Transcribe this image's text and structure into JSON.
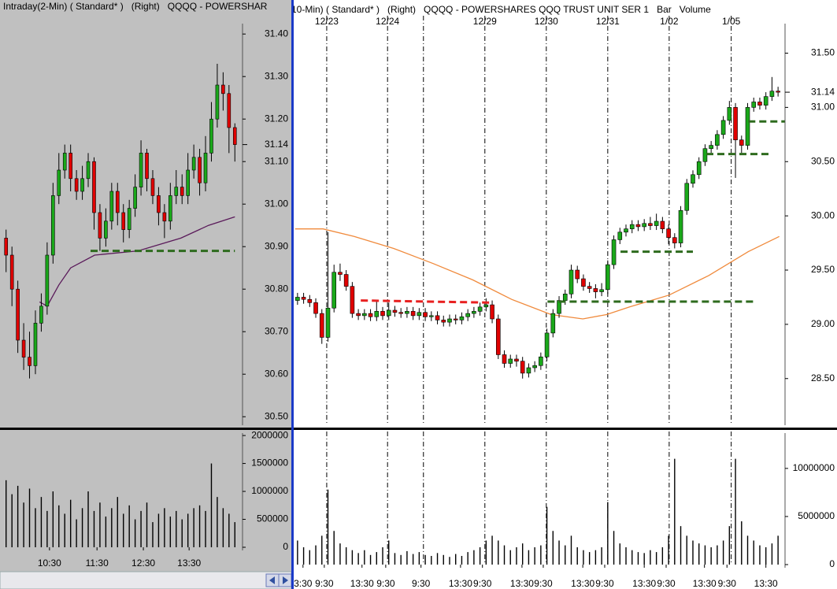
{
  "chart_data": [
    {
      "type": "candlestick",
      "title": "Intraday(2-Min) ( Standard* )   (Right)   QQQQ - POWERSHAR",
      "up_color": "#1aa81a",
      "down_color": "#e00000",
      "ylim": [
        30.48,
        31.48
      ],
      "yticks": [
        {
          "value": 30.5,
          "label": "30.50"
        },
        {
          "value": 30.6,
          "label": "30.60"
        },
        {
          "value": 30.7,
          "label": "30.70"
        },
        {
          "value": 30.8,
          "label": "30.80"
        },
        {
          "value": 30.9,
          "label": "30.90"
        },
        {
          "value": 31.0,
          "label": "31.00"
        },
        {
          "value": 31.1,
          "label": "31.10"
        },
        {
          "value": 31.2,
          "label": "31.20"
        },
        {
          "value": 31.3,
          "label": "31.30"
        },
        {
          "value": 31.4,
          "label": "31.40"
        }
      ],
      "last_price": 31.14,
      "xlim": [
        -0.5,
        39.5
      ],
      "xticks": [
        {
          "value": 7.4,
          "label": "10:30"
        },
        {
          "value": 15.5,
          "label": "11:30"
        },
        {
          "value": 23.4,
          "label": "12:30"
        },
        {
          "value": 31.2,
          "label": "13:30"
        }
      ],
      "ohlc": [
        [
          30.92,
          30.94,
          30.84,
          30.88
        ],
        [
          30.88,
          30.9,
          30.76,
          30.8
        ],
        [
          30.8,
          30.82,
          30.65,
          30.68
        ],
        [
          30.68,
          30.72,
          30.61,
          30.64
        ],
        [
          30.64,
          30.7,
          30.59,
          30.62
        ],
        [
          30.62,
          30.75,
          30.6,
          30.72
        ],
        [
          30.72,
          30.79,
          30.7,
          30.76
        ],
        [
          30.76,
          30.91,
          30.74,
          30.88
        ],
        [
          30.88,
          31.05,
          30.86,
          31.02
        ],
        [
          31.02,
          31.12,
          31.0,
          31.08
        ],
        [
          31.08,
          31.14,
          31.06,
          31.12
        ],
        [
          31.12,
          31.14,
          31.03,
          31.06
        ],
        [
          31.06,
          31.08,
          31.01,
          31.03
        ],
        [
          31.03,
          31.09,
          31.01,
          31.06
        ],
        [
          31.06,
          31.12,
          31.04,
          31.1
        ],
        [
          31.1,
          31.11,
          30.94,
          30.98
        ],
        [
          30.98,
          31.0,
          30.89,
          30.92
        ],
        [
          30.92,
          30.99,
          30.9,
          30.96
        ],
        [
          30.96,
          31.05,
          30.94,
          31.03
        ],
        [
          31.03,
          31.05,
          30.95,
          30.98
        ],
        [
          30.98,
          31.0,
          30.91,
          30.94
        ],
        [
          30.94,
          31.01,
          30.92,
          30.99
        ],
        [
          30.99,
          31.07,
          30.97,
          31.04
        ],
        [
          31.04,
          31.15,
          31.02,
          31.12
        ],
        [
          31.12,
          31.13,
          31.03,
          31.06
        ],
        [
          31.06,
          31.08,
          31.0,
          31.02
        ],
        [
          31.02,
          31.04,
          30.95,
          30.98
        ],
        [
          30.98,
          31.0,
          30.92,
          30.96
        ],
        [
          30.96,
          31.05,
          30.94,
          31.02
        ],
        [
          31.02,
          31.08,
          31.0,
          31.04
        ],
        [
          31.04,
          31.07,
          31.0,
          31.02
        ],
        [
          31.02,
          31.12,
          31.0,
          31.08
        ],
        [
          31.08,
          31.14,
          31.06,
          31.11
        ],
        [
          31.11,
          31.13,
          31.02,
          31.05
        ],
        [
          31.05,
          31.16,
          31.03,
          31.12
        ],
        [
          31.12,
          31.24,
          31.1,
          31.2
        ],
        [
          31.2,
          31.33,
          31.18,
          31.28
        ],
        [
          31.28,
          31.31,
          31.22,
          31.26
        ],
        [
          31.26,
          31.28,
          31.12,
          31.18
        ],
        [
          31.18,
          31.19,
          31.1,
          31.14
        ]
      ],
      "ma": {
        "color": "#5a1a5a",
        "x": [
          5.7,
          7.0,
          9.0,
          11.0,
          15.1,
          22.5,
          29.8,
          34.5,
          39.0
        ],
        "values": [
          30.77,
          30.76,
          30.81,
          30.85,
          30.88,
          30.89,
          30.92,
          30.95,
          30.97
        ]
      },
      "levels": [
        {
          "color": "#2e6b1e",
          "x": [
            14.4,
            39.0
          ],
          "y": [
            30.89,
            30.89
          ]
        }
      ],
      "volume": {
        "color": "#000000",
        "ylim": [
          0,
          2100000
        ],
        "yticks": [
          0,
          500000,
          1000000,
          1500000,
          2000000
        ],
        "values": [
          1200000,
          950000,
          1100000,
          800000,
          1050000,
          700000,
          900000,
          650000,
          1000000,
          750000,
          600000,
          850000,
          500000,
          700000,
          1000000,
          650000,
          800000,
          550000,
          700000,
          900000,
          600000,
          750000,
          500000,
          650000,
          800000,
          450000,
          600000,
          700000,
          550000,
          650000,
          500000,
          600000,
          700000,
          750000,
          650000,
          1500000,
          900000,
          700000,
          600000,
          450000
        ]
      }
    },
    {
      "type": "candlestick",
      "title": "10-Min) ( Standard* )   (Right)   QQQQ - POWERSHARES QQQ TRUST UNIT SER 1   Bar   Volume",
      "up_color": "#1aa81a",
      "down_color": "#e00000",
      "ylim": [
        28.07,
        31.99
      ],
      "yticks": [
        {
          "value": 28.5,
          "label": "28.50"
        },
        {
          "value": 29.0,
          "label": "29.00"
        },
        {
          "value": 29.5,
          "label": "29.50"
        },
        {
          "value": 30.0,
          "label": "30.00"
        },
        {
          "value": 30.5,
          "label": "30.50"
        },
        {
          "value": 31.0,
          "label": "31.00"
        },
        {
          "value": 31.5,
          "label": "31.50"
        }
      ],
      "last_price": 31.14,
      "xlim": [
        -0.5,
        79.5
      ],
      "xticks": [
        {
          "value": 0.9,
          "label": "3:30"
        },
        {
          "value": 4.4,
          "label": "9:30"
        },
        {
          "value": 10.6,
          "label": "13:30"
        },
        {
          "value": 14.5,
          "label": "9:30"
        },
        {
          "value": 20.3,
          "label": "9:30"
        },
        {
          "value": 26.8,
          "label": "13:30"
        },
        {
          "value": 30.4,
          "label": "9:30"
        },
        {
          "value": 36.9,
          "label": "13:30"
        },
        {
          "value": 40.4,
          "label": "9:30"
        },
        {
          "value": 46.9,
          "label": "13:30"
        },
        {
          "value": 50.5,
          "label": "9:30"
        },
        {
          "value": 57.0,
          "label": "13:30"
        },
        {
          "value": 60.6,
          "label": "9:30"
        },
        {
          "value": 66.9,
          "label": "13:30"
        },
        {
          "value": 70.6,
          "label": "9:30"
        },
        {
          "value": 77.0,
          "label": "13:30"
        }
      ],
      "date_lines": [
        {
          "value": 4.8,
          "label": "12/23"
        },
        {
          "value": 14.8,
          "label": "12/24"
        },
        {
          "value": 20.7,
          "label": null
        },
        {
          "value": 30.8,
          "label": "12/29"
        },
        {
          "value": 40.9,
          "label": "12/30"
        },
        {
          "value": 51.0,
          "label": "12/31"
        },
        {
          "value": 61.1,
          "label": "1/02"
        },
        {
          "value": 71.3,
          "label": "1/05"
        }
      ],
      "ohlc": [
        [
          29.22,
          29.29,
          29.18,
          29.25
        ],
        [
          29.25,
          29.29,
          29.19,
          29.23
        ],
        [
          29.23,
          29.27,
          29.16,
          29.2
        ],
        [
          29.2,
          29.24,
          29.06,
          29.1
        ],
        [
          29.1,
          29.14,
          28.82,
          28.88
        ],
        [
          28.88,
          29.85,
          28.84,
          29.15
        ],
        [
          29.15,
          29.55,
          29.11,
          29.48
        ],
        [
          29.48,
          29.56,
          29.4,
          29.46
        ],
        [
          29.46,
          29.5,
          29.31,
          29.35
        ],
        [
          29.35,
          29.39,
          29.06,
          29.1
        ],
        [
          29.1,
          29.14,
          29.04,
          29.08
        ],
        [
          29.08,
          29.14,
          29.04,
          29.1
        ],
        [
          29.1,
          29.14,
          29.03,
          29.07
        ],
        [
          29.07,
          29.22,
          29.03,
          29.12
        ],
        [
          29.12,
          29.16,
          29.04,
          29.08
        ],
        [
          29.08,
          29.2,
          29.04,
          29.13
        ],
        [
          29.13,
          29.17,
          29.07,
          29.11
        ],
        [
          29.11,
          29.15,
          29.06,
          29.1
        ],
        [
          29.1,
          29.16,
          29.06,
          29.12
        ],
        [
          29.12,
          29.16,
          29.04,
          29.08
        ],
        [
          29.08,
          29.15,
          29.04,
          29.11
        ],
        [
          29.11,
          29.15,
          29.03,
          29.07
        ],
        [
          29.07,
          29.12,
          29.03,
          29.08
        ],
        [
          29.08,
          29.12,
          29.0,
          29.04
        ],
        [
          29.04,
          29.08,
          28.98,
          29.02
        ],
        [
          29.02,
          29.09,
          28.98,
          29.05
        ],
        [
          29.05,
          29.09,
          29.0,
          29.04
        ],
        [
          29.04,
          29.11,
          29.0,
          29.07
        ],
        [
          29.07,
          29.14,
          29.03,
          29.1
        ],
        [
          29.1,
          29.16,
          29.06,
          29.12
        ],
        [
          29.12,
          29.2,
          29.08,
          29.16
        ],
        [
          29.16,
          29.24,
          29.12,
          29.18
        ],
        [
          29.18,
          29.22,
          29.01,
          29.05
        ],
        [
          29.05,
          29.09,
          28.68,
          28.72
        ],
        [
          28.72,
          28.76,
          28.6,
          28.64
        ],
        [
          28.64,
          28.72,
          28.6,
          28.68
        ],
        [
          28.68,
          28.72,
          28.61,
          28.66
        ],
        [
          28.66,
          28.7,
          28.5,
          28.55
        ],
        [
          28.55,
          28.64,
          28.51,
          28.6
        ],
        [
          28.6,
          28.66,
          28.56,
          28.62
        ],
        [
          28.62,
          28.74,
          28.58,
          28.7
        ],
        [
          28.7,
          28.96,
          28.66,
          28.92
        ],
        [
          28.92,
          29.14,
          28.88,
          29.1
        ],
        [
          29.1,
          29.26,
          29.06,
          29.22
        ],
        [
          29.22,
          29.32,
          29.18,
          29.28
        ],
        [
          29.28,
          29.55,
          29.24,
          29.5
        ],
        [
          29.5,
          29.54,
          29.38,
          29.42
        ],
        [
          29.42,
          29.46,
          29.31,
          29.35
        ],
        [
          29.35,
          29.39,
          29.29,
          29.33
        ],
        [
          29.33,
          29.37,
          29.24,
          29.3
        ],
        [
          29.3,
          29.38,
          29.26,
          29.32
        ],
        [
          29.32,
          29.59,
          29.28,
          29.55
        ],
        [
          29.55,
          29.82,
          29.51,
          29.78
        ],
        [
          29.78,
          29.89,
          29.74,
          29.85
        ],
        [
          29.85,
          29.92,
          29.81,
          29.88
        ],
        [
          29.88,
          29.96,
          29.84,
          29.92
        ],
        [
          29.92,
          29.96,
          29.86,
          29.9
        ],
        [
          29.9,
          29.97,
          29.86,
          29.93
        ],
        [
          29.93,
          29.99,
          29.87,
          29.91
        ],
        [
          29.91,
          30.02,
          29.87,
          29.95
        ],
        [
          29.95,
          29.99,
          29.84,
          29.88
        ],
        [
          29.88,
          29.92,
          29.74,
          29.8
        ],
        [
          29.8,
          29.84,
          29.7,
          29.75
        ],
        [
          29.75,
          30.09,
          29.71,
          30.05
        ],
        [
          30.05,
          30.34,
          30.01,
          30.3
        ],
        [
          30.3,
          30.42,
          30.26,
          30.38
        ],
        [
          30.38,
          30.54,
          30.34,
          30.5
        ],
        [
          30.5,
          30.66,
          30.46,
          30.62
        ],
        [
          30.62,
          30.69,
          30.58,
          30.65
        ],
        [
          30.65,
          30.79,
          30.61,
          30.75
        ],
        [
          30.75,
          30.92,
          30.71,
          30.88
        ],
        [
          30.88,
          31.06,
          30.84,
          31.0
        ],
        [
          31.0,
          31.04,
          30.35,
          30.7
        ],
        [
          30.7,
          30.74,
          30.58,
          30.65
        ],
        [
          30.65,
          31.04,
          30.61,
          31.0
        ],
        [
          31.0,
          31.09,
          30.96,
          31.05
        ],
        [
          31.05,
          31.09,
          30.98,
          31.02
        ],
        [
          31.02,
          31.14,
          30.98,
          31.1
        ],
        [
          31.1,
          31.28,
          31.06,
          31.15
        ],
        [
          31.15,
          31.19,
          31.1,
          31.14
        ]
      ],
      "ma": {
        "color": "#f08a3c",
        "x": [
          -0.4,
          4.2,
          9.3,
          15.8,
          22.3,
          28.8,
          35.2,
          41.7,
          46.9,
          50.8,
          54.6,
          61.1,
          67.6,
          74.1,
          79.2
        ],
        "values": [
          29.88,
          29.88,
          29.81,
          29.7,
          29.56,
          29.41,
          29.23,
          29.09,
          29.05,
          29.09,
          29.16,
          29.27,
          29.45,
          29.67,
          29.81
        ]
      },
      "levels": [
        {
          "color": "#e82020",
          "x": [
            10.4,
            32.1
          ],
          "y": [
            29.22,
            29.2
          ]
        },
        {
          "color": "#2e6b1e",
          "x": [
            41.1,
            75.1
          ],
          "y": [
            29.21,
            29.21
          ]
        },
        {
          "color": "#2e6b1e",
          "x": [
            53.1,
            65.0
          ],
          "y": [
            29.67,
            29.67
          ]
        },
        {
          "color": "#2e6b1e",
          "x": [
            67.2,
            77.9
          ],
          "y": [
            30.57,
            30.57
          ]
        },
        {
          "color": "#2e6b1e",
          "x": [
            74.1,
            80.1
          ],
          "y": [
            30.87,
            30.87
          ]
        }
      ],
      "volume": {
        "color": "#000000",
        "ylim": [
          0,
          14000000
        ],
        "yticks": [
          0,
          5000000,
          10000000
        ],
        "values": [
          2500000,
          1800000,
          1500000,
          2000000,
          3000000,
          7800000,
          3500000,
          2200000,
          1800000,
          1500000,
          1200000,
          1500000,
          1000000,
          1300000,
          1800000,
          2500000,
          1200000,
          1000000,
          1400000,
          1100000,
          1300000,
          1000000,
          900000,
          1200000,
          1000000,
          800000,
          1100000,
          900000,
          1300000,
          1500000,
          1800000,
          2500000,
          3000000,
          2500000,
          2000000,
          1500000,
          1800000,
          2200000,
          1500000,
          1800000,
          2000000,
          6000000,
          3500000,
          2500000,
          2000000,
          3000000,
          1800000,
          1500000,
          1300000,
          1500000,
          1800000,
          6500000,
          3500000,
          2200000,
          1800000,
          1500000,
          1300000,
          1200000,
          1500000,
          1300000,
          1800000,
          3000000,
          11000000,
          4000000,
          3000000,
          2500000,
          2200000,
          2000000,
          1800000,
          2000000,
          2500000,
          4000000,
          11000000,
          4500000,
          3000000,
          2500000,
          2000000,
          1800000,
          2200000,
          3000000
        ]
      }
    }
  ]
}
